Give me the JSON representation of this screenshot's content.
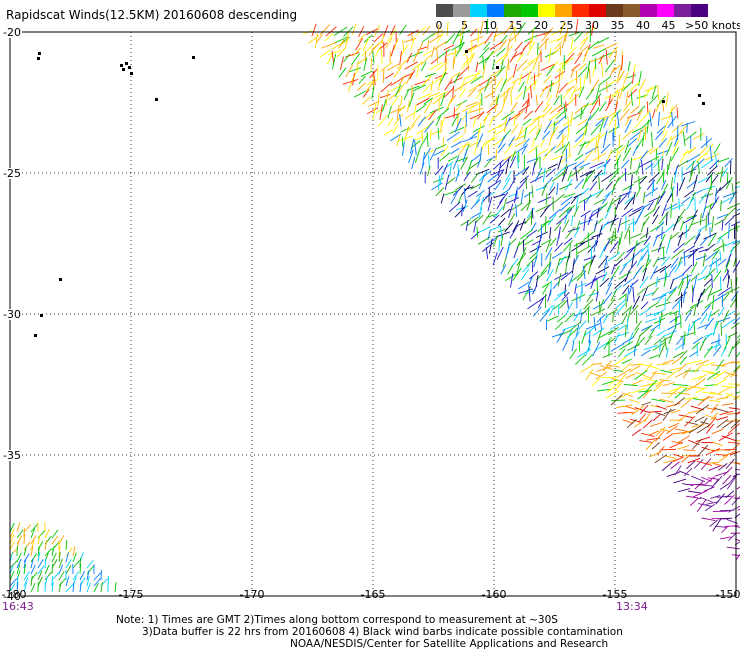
{
  "title": "Rapidscat Winds(12.5KM) 20160608 descending",
  "legend": {
    "labels": [
      "0",
      "5",
      "10",
      "15",
      "20",
      "25",
      "30",
      "35",
      "40",
      "45",
      ">50 knots"
    ],
    "colors": [
      "#4d4d4d",
      "#9a9a9a",
      "#00d2ff",
      "#0078ff",
      "#1eaa00",
      "#00c800",
      "#ffff00",
      "#ffa500",
      "#ff2a00",
      "#e00000",
      "#6b3a1c",
      "#8b5a2b",
      "#b000b0",
      "#ff00ff",
      "#7a1f9c",
      "#4b0082"
    ]
  },
  "map": {
    "lat_labels": [
      "-20",
      "-25",
      "-30",
      "-35",
      "-40"
    ],
    "lon_labels": [
      "-180",
      "-175",
      "-170",
      "-165",
      "-160",
      "-155",
      "-150"
    ],
    "times": {
      "left": "16:43",
      "right": "13:34"
    }
  },
  "notes": {
    "line1": "Note: 1) Times are GMT 2)Times along bottom correspond to measurement at ~30S",
    "line2": "3)Data buffer is 22 hrs from 20160608 4) Black wind barbs indicate possible contamination",
    "line3": "NOAA/NESDIS/Center for Satellite Applications and Research"
  }
}
